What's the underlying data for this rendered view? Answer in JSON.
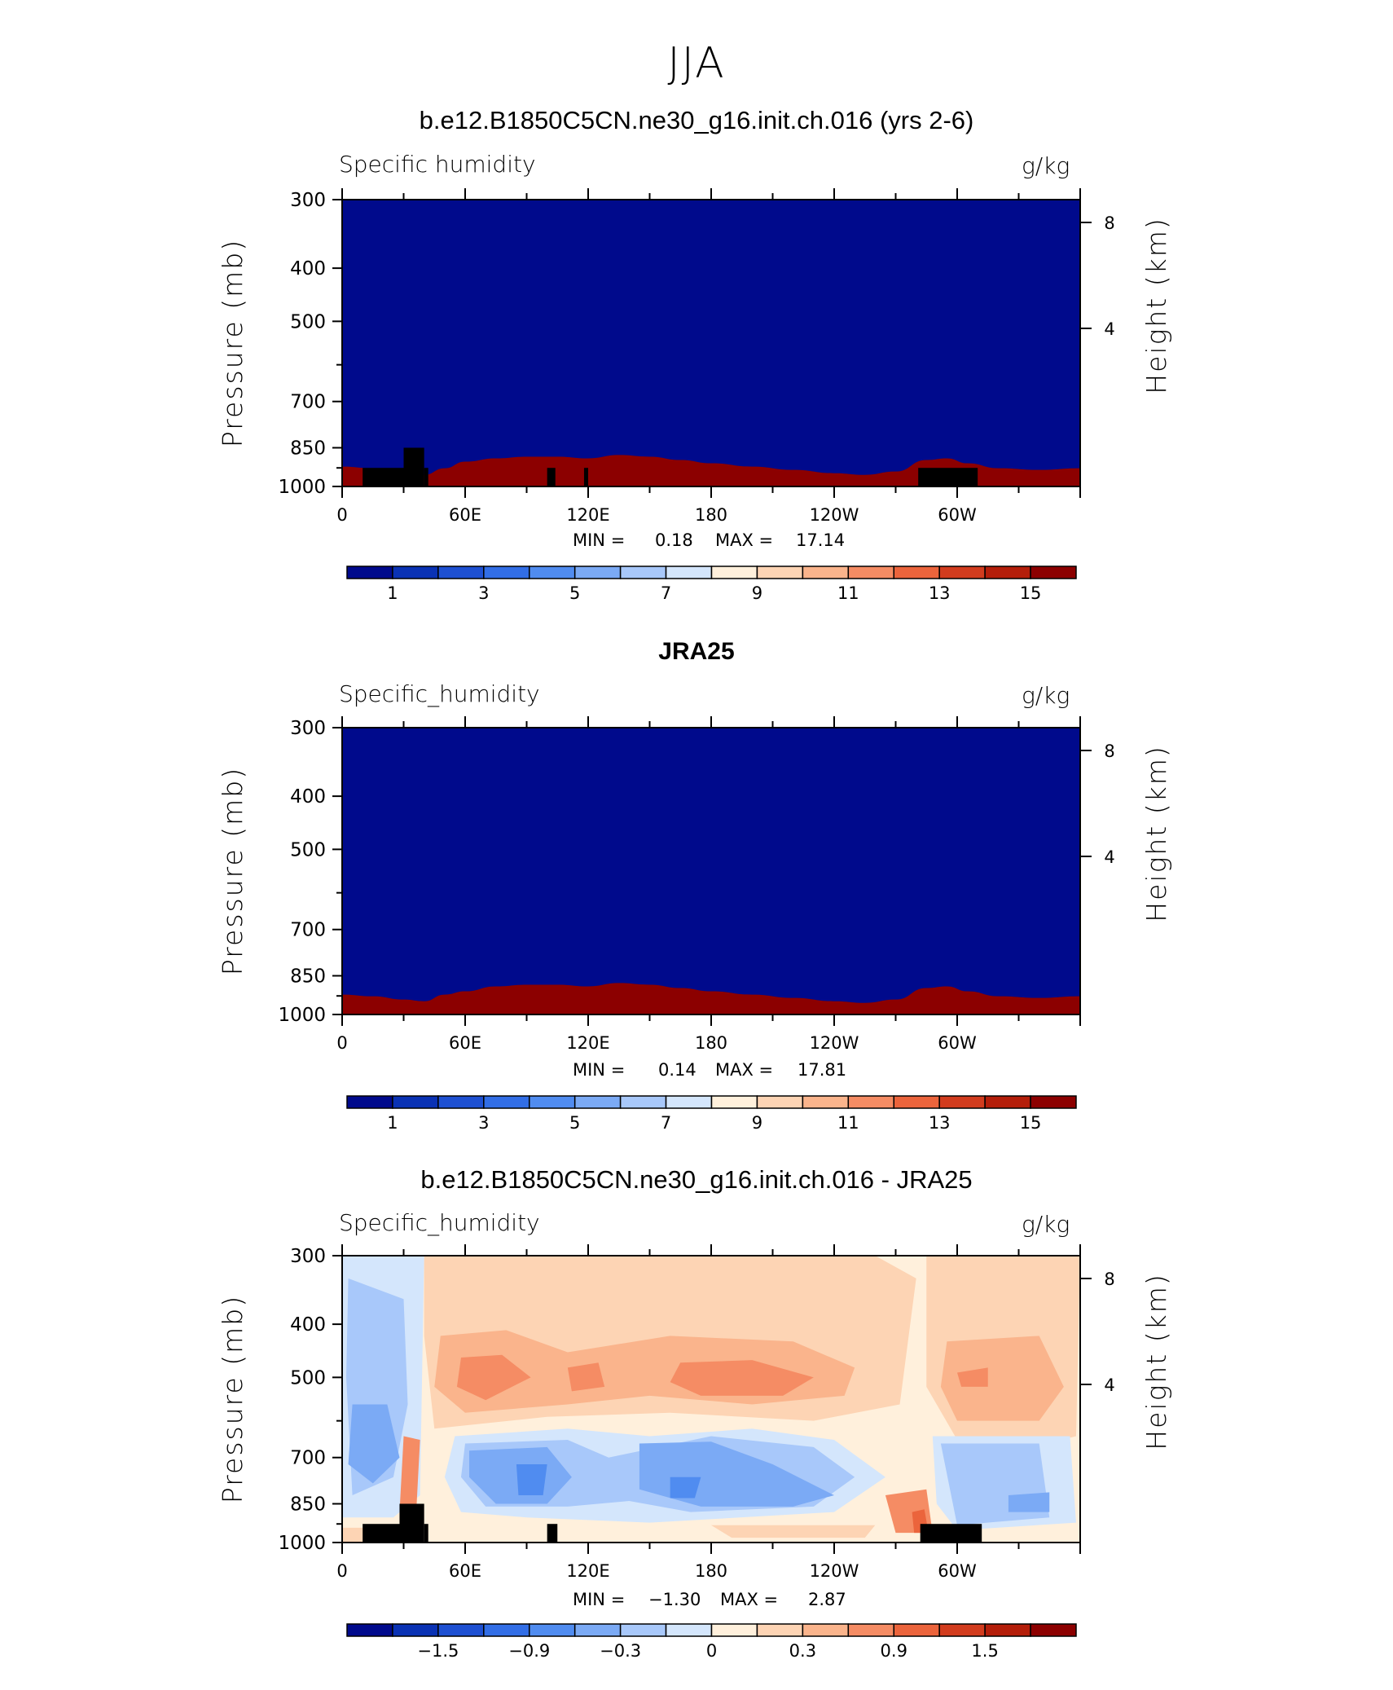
{
  "figure": {
    "title": "JJA"
  },
  "colors": {
    "palette": [
      "#000a8c",
      "#0a32b4",
      "#1e50d2",
      "#326ee6",
      "#508cf0",
      "#7baaf5",
      "#a8c8fa",
      "#d4e6fc",
      "#fff0dc",
      "#fdd4b4",
      "#fab48c",
      "#f58c64",
      "#eb643c",
      "#d23c1e",
      "#b41e0a",
      "#8c0000"
    ],
    "land": "#000000"
  },
  "chart_data": [
    {
      "type": "heatmap",
      "title": "b.e12.B1850C5CN.ne30_g16.init.ch.016 (yrs 2-6)",
      "variable": "Specific humidity",
      "units": "g/kg",
      "ylabel": "Pressure (mb)",
      "y2label": "Height (km)",
      "yticks": [
        "300",
        "400",
        "500",
        "700",
        "850",
        "1000"
      ],
      "y2ticks": [
        "8",
        "4"
      ],
      "xticks": [
        "0",
        "60E",
        "120E",
        "180",
        "120W",
        "60W"
      ],
      "min_label": "MIN =",
      "min_value": "0.18",
      "max_label": "MAX =",
      "max_value": "17.14",
      "colorbar_labels": [
        "1",
        "3",
        "5",
        "7",
        "9",
        "11",
        "13",
        "15"
      ],
      "colorbar_range": [
        0,
        16
      ],
      "ylim": [
        1000,
        300
      ],
      "xlim": [
        0,
        360
      ]
    },
    {
      "type": "heatmap",
      "title": "JRA25",
      "variable": "Specific_humidity",
      "units": "g/kg",
      "ylabel": "Pressure (mb)",
      "y2label": "Height (km)",
      "yticks": [
        "300",
        "400",
        "500",
        "700",
        "850",
        "1000"
      ],
      "y2ticks": [
        "8",
        "4"
      ],
      "xticks": [
        "0",
        "60E",
        "120E",
        "180",
        "120W",
        "60W"
      ],
      "min_label": "MIN =",
      "min_value": "0.14",
      "max_label": "MAX =",
      "max_value": "17.81",
      "colorbar_labels": [
        "1",
        "3",
        "5",
        "7",
        "9",
        "11",
        "13",
        "15"
      ],
      "colorbar_range": [
        0,
        16
      ],
      "ylim": [
        1000,
        300
      ],
      "xlim": [
        0,
        360
      ]
    },
    {
      "type": "heatmap",
      "title": "b.e12.B1850C5CN.ne30_g16.init.ch.016 - JRA25",
      "variable": "Specific_humidity",
      "units": "g/kg",
      "ylabel": "Pressure (mb)",
      "y2label": "Height (km)",
      "yticks": [
        "300",
        "400",
        "500",
        "700",
        "850",
        "1000"
      ],
      "y2ticks": [
        "8",
        "4"
      ],
      "xticks": [
        "0",
        "60E",
        "120E",
        "180",
        "120W",
        "60W"
      ],
      "min_label": "MIN =",
      "min_value": "−1.30",
      "max_label": "MAX =",
      "max_value": "2.87",
      "colorbar_labels": [
        "−1.5",
        "−0.9",
        "−0.3",
        "0",
        "0.3",
        "0.9",
        "1.5"
      ],
      "colorbar_range": [
        -2.4,
        2.4
      ],
      "ylim": [
        1000,
        300
      ],
      "xlim": [
        0,
        360
      ]
    }
  ]
}
